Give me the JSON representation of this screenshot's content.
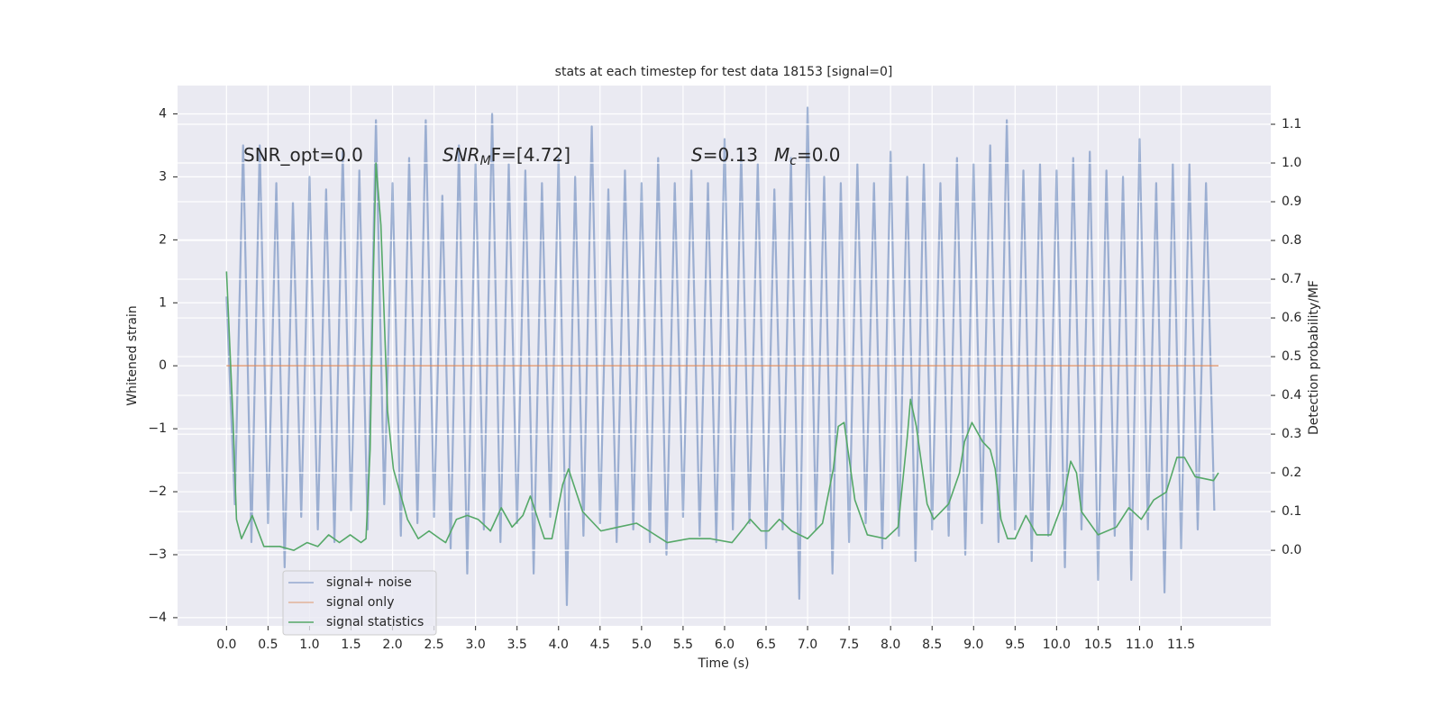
{
  "chart_data": {
    "type": "line",
    "title": "stats at each timestep for test data 18153 [signal=0]",
    "xlabel": "Time (s)",
    "ylabel": "Whitened strain",
    "y2label": "Detection probability/MF",
    "xlim": [
      -0.59,
      12.58
    ],
    "xticks": [
      {
        "value": 0,
        "label": "0.0"
      },
      0.5,
      {
        "value": 1,
        "label": "1.0"
      },
      1.5,
      {
        "value": 2,
        "label": "2.0"
      },
      2.5,
      {
        "value": 3,
        "label": "3.0"
      },
      3.5,
      {
        "value": 4,
        "label": "4.0"
      },
      4.5,
      {
        "value": 5,
        "label": "5.0"
      },
      5.5,
      {
        "value": 6,
        "label": "6.0"
      },
      6.5,
      {
        "value": 7,
        "label": "7.0"
      },
      7.5,
      {
        "value": 8,
        "label": "8.0"
      },
      8.5,
      {
        "value": 9,
        "label": "9.0"
      },
      9.5,
      {
        "value": 10,
        "label": "10.0"
      },
      10.5,
      {
        "value": 11,
        "label": "11.0"
      },
      11.5
    ],
    "ylim": [
      -4.13,
      4.45
    ],
    "yticks": [
      {
        "value": -4,
        "label": "−4"
      },
      {
        "value": -3,
        "label": "−3"
      },
      {
        "value": -2,
        "label": "−2"
      },
      {
        "value": -1,
        "label": "−1"
      },
      0,
      1,
      2,
      3,
      4
    ],
    "y2lim": [
      -0.195,
      1.2
    ],
    "y2ticks": [
      {
        "value": 0,
        "label": "0.0"
      },
      0.1,
      0.2,
      0.3,
      0.4,
      0.5,
      0.6,
      0.7,
      0.8,
      0.9,
      {
        "value": 1,
        "label": "1.0"
      },
      1.1
    ],
    "grid": true,
    "legend": "lower left",
    "annotations": [
      {
        "text": "SNR_opt=0.0"
      },
      {
        "main": "SNR",
        "sub": "M",
        "tail": "F=[4.72]"
      },
      {
        "main": "S",
        "tail": "=0.13"
      },
      {
        "main": "M",
        "sub": "c",
        "tail": "=0.0"
      }
    ],
    "series": [
      {
        "name": "signal+ noise",
        "color": "#4c72b0",
        "x": [
          0,
          0.1,
          0.2,
          0.3,
          0.4,
          0.5,
          0.6,
          0.7,
          0.8,
          0.9,
          1,
          1.1,
          1.2,
          1.3,
          1.4,
          1.5,
          1.6,
          1.7,
          1.8,
          1.9,
          2,
          2.1,
          2.2,
          2.3,
          2.4,
          2.5,
          2.6,
          2.7,
          2.8,
          2.9,
          3,
          3.1,
          3.2,
          3.3,
          3.4,
          3.5,
          3.6,
          3.7,
          3.8,
          3.9,
          4,
          4.1,
          4.2,
          4.3,
          4.4,
          4.5,
          4.6,
          4.7,
          4.8,
          4.9,
          5,
          5.1,
          5.2,
          5.3,
          5.4,
          5.5,
          5.6,
          5.7,
          5.8,
          5.9,
          6,
          6.1,
          6.2,
          6.3,
          6.4,
          6.5,
          6.6,
          6.7,
          6.8,
          6.9,
          7,
          7.1,
          7.2,
          7.3,
          7.4,
          7.5,
          7.6,
          7.7,
          7.8,
          7.9,
          8,
          8.1,
          8.2,
          8.3,
          8.4,
          8.5,
          8.6,
          8.7,
          8.8,
          8.9,
          9,
          9.1,
          9.2,
          9.3,
          9.4,
          9.5,
          9.6,
          9.7,
          9.8,
          9.9,
          10,
          10.1,
          10.2,
          10.3,
          10.4,
          10.5,
          10.6,
          10.7,
          10.8,
          10.9,
          11,
          11.1,
          11.2,
          11.3,
          11.4,
          11.5,
          11.6,
          11.7,
          11.8,
          11.9
        ],
        "values": [
          1.1,
          -2.2,
          3.5,
          -2.8,
          3.5,
          -2.5,
          2.9,
          -3.2,
          2.6,
          -2.4,
          3.0,
          -2.6,
          2.8,
          -2.8,
          3.4,
          -2.3,
          3.1,
          -2.6,
          3.9,
          -2.2,
          2.9,
          -2.7,
          3.3,
          -2.5,
          3.9,
          -2.4,
          2.7,
          -2.9,
          3.5,
          -3.3,
          3.2,
          -2.6,
          4.0,
          -2.8,
          3.2,
          -2.5,
          3.1,
          -3.3,
          2.9,
          -2.4,
          3.3,
          -3.8,
          3.0,
          -2.7,
          3.8,
          -2.5,
          2.8,
          -2.8,
          3.1,
          -2.6,
          2.9,
          -2.8,
          3.3,
          -3.0,
          2.9,
          -2.4,
          3.1,
          -2.7,
          2.9,
          -2.8,
          3.6,
          -2.6,
          3.4,
          -2.5,
          3.2,
          -2.9,
          2.8,
          -2.6,
          3.3,
          -3.7,
          4.1,
          -2.6,
          3.0,
          -3.3,
          2.9,
          -2.8,
          3.2,
          -2.5,
          2.9,
          -2.9,
          3.4,
          -2.7,
          3.0,
          -3.1,
          3.2,
          -2.6,
          2.9,
          -2.7,
          3.3,
          -3.0,
          3.2,
          -2.5,
          3.5,
          -2.8,
          3.9,
          -2.6,
          3.1,
          -3.1,
          3.2,
          -2.7,
          3.1,
          -3.2,
          3.3,
          -2.6,
          3.4,
          -3.4,
          3.1,
          -2.7,
          3.0,
          -3.4,
          3.6,
          -2.6,
          2.9,
          -3.6,
          3.2,
          -2.9,
          3.2,
          -2.6,
          2.9,
          -2.3
        ]
      },
      {
        "name": "signal only",
        "color": "#dd8452",
        "x": [
          0,
          11.95
        ],
        "values": [
          0,
          0
        ]
      },
      {
        "name": "signal statistics",
        "color": "#55a868",
        "axis": "y2",
        "x": [
          0,
          0.08,
          0.12,
          0.18,
          0.31,
          0.45,
          0.64,
          0.81,
          0.97,
          1.1,
          1.23,
          1.36,
          1.49,
          1.62,
          1.68,
          1.73,
          1.77,
          1.8,
          1.86,
          1.94,
          2.01,
          2.18,
          2.31,
          2.44,
          2.57,
          2.64,
          2.77,
          2.9,
          3.03,
          3.18,
          3.31,
          3.44,
          3.57,
          3.66,
          3.83,
          3.92,
          4.05,
          4.12,
          4.29,
          4.51,
          4.72,
          4.94,
          5.09,
          5.31,
          5.57,
          5.83,
          6.09,
          6.24,
          6.31,
          6.44,
          6.53,
          6.66,
          6.81,
          7.0,
          7.18,
          7.31,
          7.37,
          7.44,
          7.57,
          7.72,
          7.94,
          8.09,
          8.2,
          8.24,
          8.31,
          8.44,
          8.52,
          8.7,
          8.83,
          8.89,
          8.98,
          9.11,
          9.2,
          9.26,
          9.33,
          9.41,
          9.5,
          9.63,
          9.76,
          9.93,
          10.07,
          10.17,
          10.24,
          10.3,
          10.5,
          10.72,
          10.87,
          11.02,
          11.17,
          11.32,
          11.45,
          11.54,
          11.67,
          11.89,
          11.95
        ],
        "values": [
          0.72,
          0.33,
          0.08,
          0.03,
          0.09,
          0.01,
          0.01,
          0.0,
          0.02,
          0.01,
          0.04,
          0.02,
          0.04,
          0.02,
          0.03,
          0.26,
          0.72,
          1.0,
          0.84,
          0.36,
          0.21,
          0.08,
          0.03,
          0.05,
          0.03,
          0.02,
          0.08,
          0.09,
          0.08,
          0.05,
          0.11,
          0.06,
          0.09,
          0.14,
          0.03,
          0.03,
          0.17,
          0.21,
          0.1,
          0.05,
          0.06,
          0.07,
          0.05,
          0.02,
          0.03,
          0.03,
          0.02,
          0.06,
          0.08,
          0.05,
          0.05,
          0.08,
          0.05,
          0.03,
          0.07,
          0.21,
          0.32,
          0.33,
          0.13,
          0.04,
          0.03,
          0.06,
          0.29,
          0.39,
          0.32,
          0.12,
          0.08,
          0.12,
          0.2,
          0.28,
          0.33,
          0.28,
          0.26,
          0.21,
          0.08,
          0.03,
          0.03,
          0.09,
          0.04,
          0.04,
          0.12,
          0.23,
          0.2,
          0.1,
          0.04,
          0.06,
          0.11,
          0.08,
          0.13,
          0.15,
          0.24,
          0.24,
          0.19,
          0.18,
          0.2
        ]
      }
    ]
  }
}
